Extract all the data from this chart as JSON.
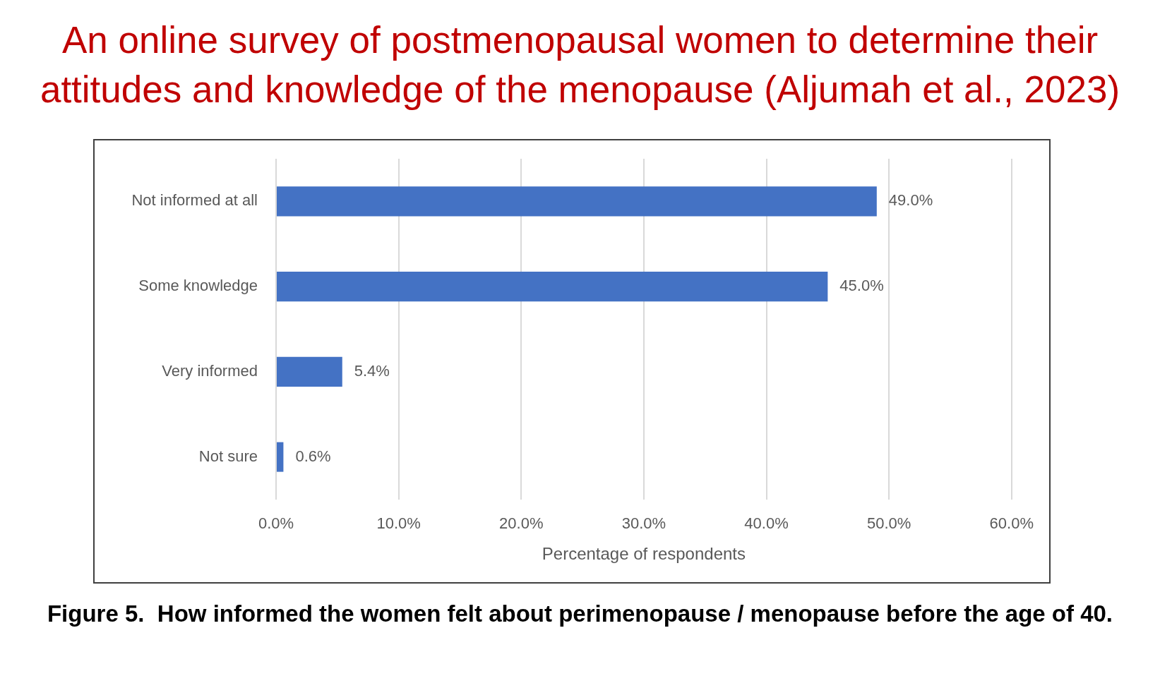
{
  "chart_data": {
    "type": "bar",
    "orientation": "horizontal",
    "title": "An online survey of postmenopausal women to determine their attitudes and knowledge of the menopause (Aljumah et al., 2023)",
    "xlabel": "Percentage of respondents",
    "annotations": [
      "Figure 5.  How informed the women felt about perimenopause / menopause before the age of 40."
    ],
    "categories": [
      "Not informed at all",
      "Some knowledge",
      "Very informed",
      "Not sure"
    ],
    "values": [
      49.0,
      45.0,
      5.4,
      0.6
    ],
    "value_labels": [
      "49.0%",
      "45.0%",
      "5.4%",
      "0.6%"
    ],
    "color": "#4472c4",
    "xlim": [
      0,
      60
    ],
    "xticks": [
      {
        "value": 0,
        "label": "0.0%"
      },
      {
        "value": 10,
        "label": "10.0%"
      },
      {
        "value": 20,
        "label": "20.0%"
      },
      {
        "value": 30,
        "label": "30.0%"
      },
      {
        "value": 40,
        "label": "40.0%"
      },
      {
        "value": 50,
        "label": "50.0%"
      },
      {
        "value": 60,
        "label": "60.0%"
      }
    ],
    "grid": "x",
    "legend": false
  }
}
